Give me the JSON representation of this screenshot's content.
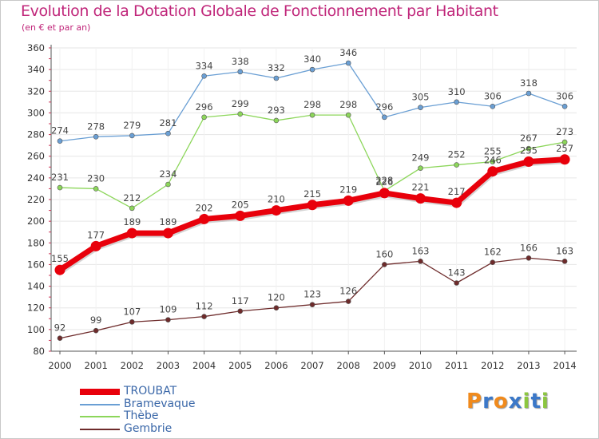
{
  "title": "Evolution de la Dotation Globale de Fonctionnement par Habitant",
  "subtitle": "(en € et par an)",
  "colors": {
    "title": "#c0267a",
    "axis": "#555555",
    "grid": "#e6e6e6",
    "legend_text": "#3a67a8"
  },
  "chart_data": {
    "type": "line",
    "x": [
      "2000",
      "2001",
      "2002",
      "2003",
      "2004",
      "2005",
      "2006",
      "2007",
      "2008",
      "2009",
      "2010",
      "2011",
      "2012",
      "2013",
      "2014"
    ],
    "ylim": [
      80,
      360
    ],
    "yticks": [
      80,
      100,
      120,
      140,
      160,
      180,
      200,
      220,
      240,
      260,
      280,
      300,
      320,
      340,
      360
    ],
    "grid": true,
    "legend_position": "bottom-left",
    "series": [
      {
        "name": "TROUBAT",
        "color": "#e8000b",
        "emphasis": true,
        "values": [
          155,
          177,
          189,
          189,
          202,
          205,
          210,
          215,
          219,
          226,
          221,
          217,
          246,
          255,
          257
        ]
      },
      {
        "name": "Bramevaque",
        "color": "#6a9fd4",
        "emphasis": false,
        "values": [
          274,
          278,
          279,
          281,
          334,
          338,
          332,
          340,
          346,
          296,
          305,
          310,
          306,
          318,
          306
        ]
      },
      {
        "name": "Thèbe",
        "color": "#8cd65a",
        "emphasis": false,
        "values": [
          231,
          230,
          212,
          234,
          296,
          299,
          293,
          298,
          298,
          228,
          249,
          252,
          255,
          267,
          273
        ]
      },
      {
        "name": "Gembrie",
        "color": "#6e2b2b",
        "emphasis": false,
        "values": [
          92,
          99,
          107,
          109,
          112,
          117,
          120,
          123,
          126,
          160,
          163,
          143,
          162,
          166,
          163
        ]
      }
    ]
  },
  "logo": {
    "text": "Proxiti",
    "letters": [
      {
        "ch": "P",
        "color": "#f08a1c"
      },
      {
        "ch": "r",
        "color": "#3b78c8"
      },
      {
        "ch": "o",
        "color": "#f08a1c"
      },
      {
        "ch": "x",
        "color": "#3b78c8"
      },
      {
        "ch": "i",
        "color": "#8cc63f"
      },
      {
        "ch": "t",
        "color": "#3b78c8"
      },
      {
        "ch": "i",
        "color": "#8cc63f"
      }
    ]
  }
}
